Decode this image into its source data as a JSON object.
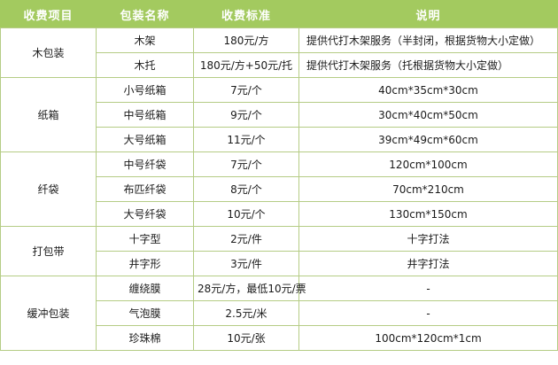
{
  "colors": {
    "header_bg": "#a3ca5f",
    "header_text": "#ffffff",
    "border": "#b5cc85",
    "body_text": "#1a1a1a"
  },
  "table": {
    "header": [
      "收费项目",
      "包装名称",
      "收费标准",
      "说明"
    ],
    "groups": [
      {
        "name": "木包装",
        "rows": [
          {
            "name": "木架",
            "price": "180元/方",
            "note": "提供代打木架服务（半封闭，根据货物大小定做）"
          },
          {
            "name": "木托",
            "price": "180元/方+50元/托",
            "note": "提供代打木架服务（托根据货物大小定做）"
          }
        ]
      },
      {
        "name": "纸箱",
        "rows": [
          {
            "name": "小号纸箱",
            "price": "7元/个",
            "note": "40cm*35cm*30cm"
          },
          {
            "name": "中号纸箱",
            "price": "9元/个",
            "note": "30cm*40cm*50cm"
          },
          {
            "name": "大号纸箱",
            "price": "11元/个",
            "note": "39cm*49cm*60cm"
          }
        ]
      },
      {
        "name": "纤袋",
        "rows": [
          {
            "name": "中号纤袋",
            "price": "7元/个",
            "note": "120cm*100cm"
          },
          {
            "name": "布匹纤袋",
            "price": "8元/个",
            "note": "70cm*210cm"
          },
          {
            "name": "大号纤袋",
            "price": "10元/个",
            "note": "130cm*150cm"
          }
        ]
      },
      {
        "name": "打包带",
        "rows": [
          {
            "name": "十字型",
            "price": "2元/件",
            "note": "十字打法"
          },
          {
            "name": "井字形",
            "price": "3元/件",
            "note": "井字打法"
          }
        ]
      },
      {
        "name": "缓冲包装",
        "rows": [
          {
            "name": "缠绕膜",
            "price": "28元/方，最低10元/票",
            "note": "-"
          },
          {
            "name": "气泡膜",
            "price": "2.5元/米",
            "note": "-"
          },
          {
            "name": "珍珠棉",
            "price": "10元/张",
            "note": "100cm*120cm*1cm"
          }
        ]
      }
    ]
  }
}
